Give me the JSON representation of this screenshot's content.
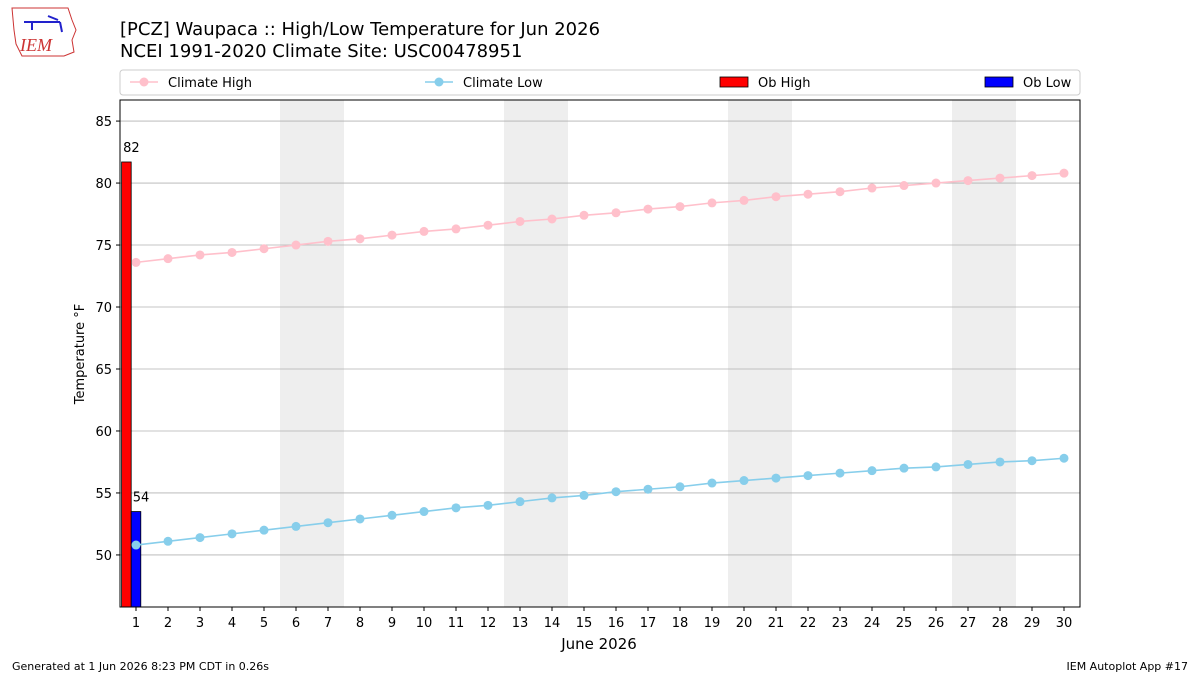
{
  "logo": {
    "text": "IEM"
  },
  "chart_data": {
    "type": "combo",
    "title": "[PCZ] Waupaca :: High/Low Temperature for Jun 2026",
    "subtitle": "NCEI 1991-2020 Climate Site: USC00478951",
    "x_label": "June 2026",
    "y_label": "Temperature °F",
    "x": [
      1,
      2,
      3,
      4,
      5,
      6,
      7,
      8,
      9,
      10,
      11,
      12,
      13,
      14,
      15,
      16,
      17,
      18,
      19,
      20,
      21,
      22,
      23,
      24,
      25,
      26,
      27,
      28,
      29,
      30
    ],
    "series": [
      {
        "name": "Climate High",
        "type": "line",
        "color": "#ffc0cb",
        "values": [
          73.6,
          73.9,
          74.2,
          74.4,
          74.7,
          75.0,
          75.3,
          75.5,
          75.8,
          76.1,
          76.3,
          76.6,
          76.9,
          77.1,
          77.4,
          77.6,
          77.9,
          78.1,
          78.4,
          78.6,
          78.9,
          79.1,
          79.3,
          79.6,
          79.8,
          80.0,
          80.2,
          80.4,
          80.6,
          80.8
        ]
      },
      {
        "name": "Climate Low",
        "type": "line",
        "color": "#87ceeb",
        "values": [
          50.8,
          51.1,
          51.4,
          51.7,
          52.0,
          52.3,
          52.6,
          52.9,
          53.2,
          53.5,
          53.8,
          54.0,
          54.3,
          54.6,
          54.8,
          55.1,
          55.3,
          55.5,
          55.8,
          56.0,
          56.2,
          56.4,
          56.6,
          56.8,
          57.0,
          57.1,
          57.3,
          57.5,
          57.6,
          57.8
        ]
      },
      {
        "name": "Ob High",
        "type": "bar",
        "color": "#ff0000",
        "x": [
          1
        ],
        "values": [
          81.7
        ],
        "value_labels": [
          "82"
        ]
      },
      {
        "name": "Ob Low",
        "type": "bar",
        "color": "#0000ff",
        "x": [
          1
        ],
        "values": [
          53.5
        ],
        "value_labels": [
          "54"
        ]
      }
    ],
    "xlim": [
      0.5,
      30.5
    ],
    "xticks": [
      1,
      2,
      3,
      4,
      5,
      6,
      7,
      8,
      9,
      10,
      11,
      12,
      13,
      14,
      15,
      16,
      17,
      18,
      19,
      20,
      21,
      22,
      23,
      24,
      25,
      26,
      27,
      28,
      29,
      30
    ],
    "ylim": [
      45.8,
      86.7
    ],
    "yticks": [
      50,
      55,
      60,
      65,
      70,
      75,
      80,
      85
    ],
    "grid": true,
    "weekend_shading": [
      [
        5.5,
        7.5
      ],
      [
        12.5,
        14.5
      ],
      [
        19.5,
        21.5
      ],
      [
        26.5,
        28.5
      ]
    ],
    "legend": "top",
    "footer_left": "Generated at 1 Jun 2026 8:23 PM CDT in 0.26s",
    "footer_right": "IEM Autoplot App #17"
  }
}
